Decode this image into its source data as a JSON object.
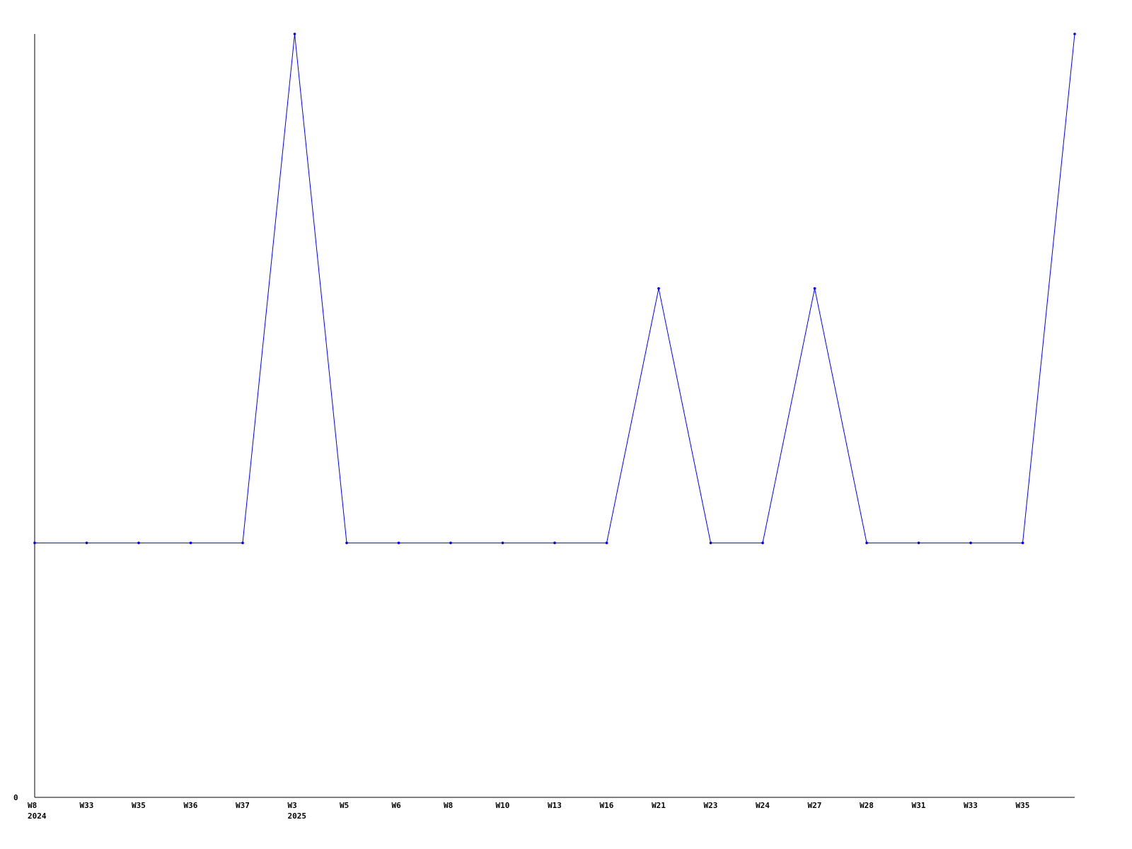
{
  "chart_data": {
    "type": "line",
    "title": "",
    "xlabel": "",
    "ylabel": "",
    "categories": [
      "W8",
      "W33",
      "W35",
      "W36",
      "W37",
      "W3",
      "W5",
      "W6",
      "W8",
      "W10",
      "W13",
      "W16",
      "W21",
      "W23",
      "W24",
      "W27",
      "W28",
      "W31",
      "W33",
      "W35",
      ""
    ],
    "year_labels": [
      {
        "index": 0,
        "label": "2024"
      },
      {
        "index": 5,
        "label": "2025"
      }
    ],
    "series": [
      {
        "values": [
          1,
          1,
          1,
          1,
          1,
          3,
          1,
          1,
          1,
          1,
          1,
          1,
          2,
          1,
          1,
          2,
          1,
          1,
          1,
          1,
          3
        ]
      }
    ],
    "y_ticks": [
      "0"
    ],
    "ylim": [
      0,
      3
    ],
    "grid": false,
    "colors": {
      "line": "#0000ff",
      "axis": "#000000"
    }
  }
}
